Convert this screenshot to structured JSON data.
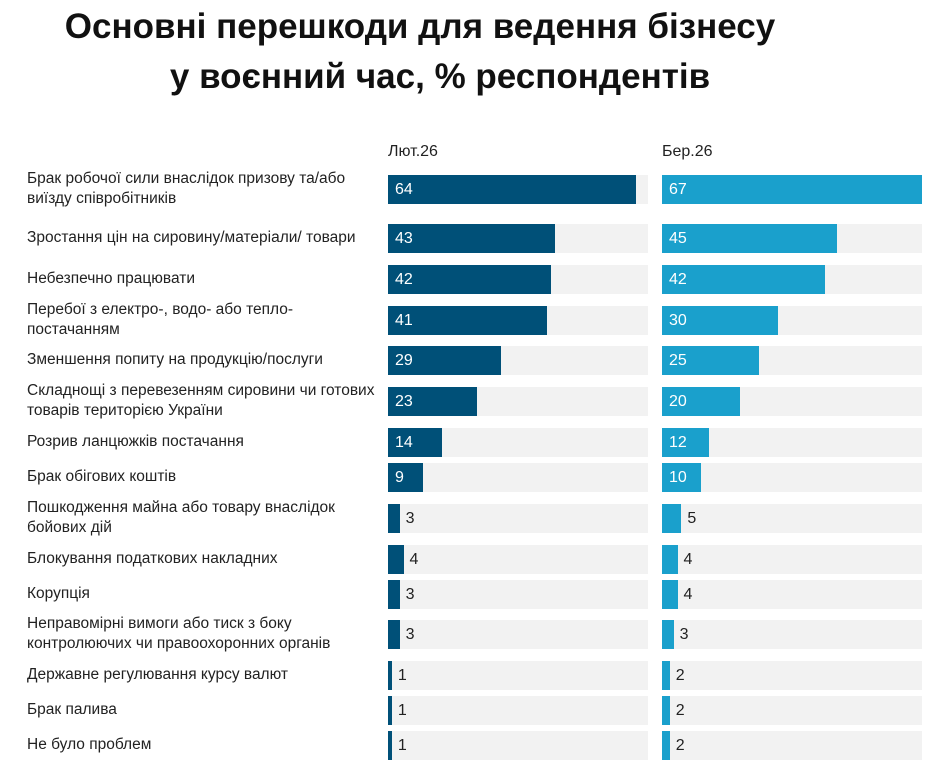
{
  "chart_data": {
    "type": "bar",
    "orientation": "horizontal",
    "title": "Основні перешкоди для ведення бізнесу у воєнний час, % респондентів",
    "title_lines": [
      "Основні перешкоди для ведення бізнесу",
      "у воєнний час, % респондентів"
    ],
    "categories": [
      "Брак робочої сили внаслідок призову та/або виїзду співробітників",
      "Зростання цін на сировину/матеріали/ товари",
      "Небезпечно працювати",
      "Перебої з електро-, водо- або тепло- постачанням",
      "Зменшення попиту на продукцію/послуги",
      "Складнощі з перевезенням сировини чи готових товарів територією України",
      "Розрив ланцюжків постачання",
      "Брак обігових коштів",
      "Пошкодження майна або товару внаслідок бойових дій",
      "Блокування податкових накладних",
      "Корупція",
      "Неправомірні вимоги або тиск з боку контролюючих чи правоохоронних органів",
      "Державне регулювання курсу валют",
      "Брак палива",
      "Не було проблем"
    ],
    "series": [
      {
        "name": "Лют.26",
        "color": "#005078",
        "values": [
          64,
          43,
          42,
          41,
          29,
          23,
          14,
          9,
          3,
          4,
          3,
          3,
          1,
          1,
          1
        ]
      },
      {
        "name": "Бер.26",
        "color": "#1aa0cc",
        "values": [
          67,
          45,
          42,
          30,
          25,
          20,
          12,
          10,
          5,
          4,
          4,
          3,
          2,
          2,
          2
        ]
      }
    ],
    "xlim": [
      0,
      67
    ],
    "grid": false,
    "data_labels": true,
    "legend": "column headers"
  }
}
